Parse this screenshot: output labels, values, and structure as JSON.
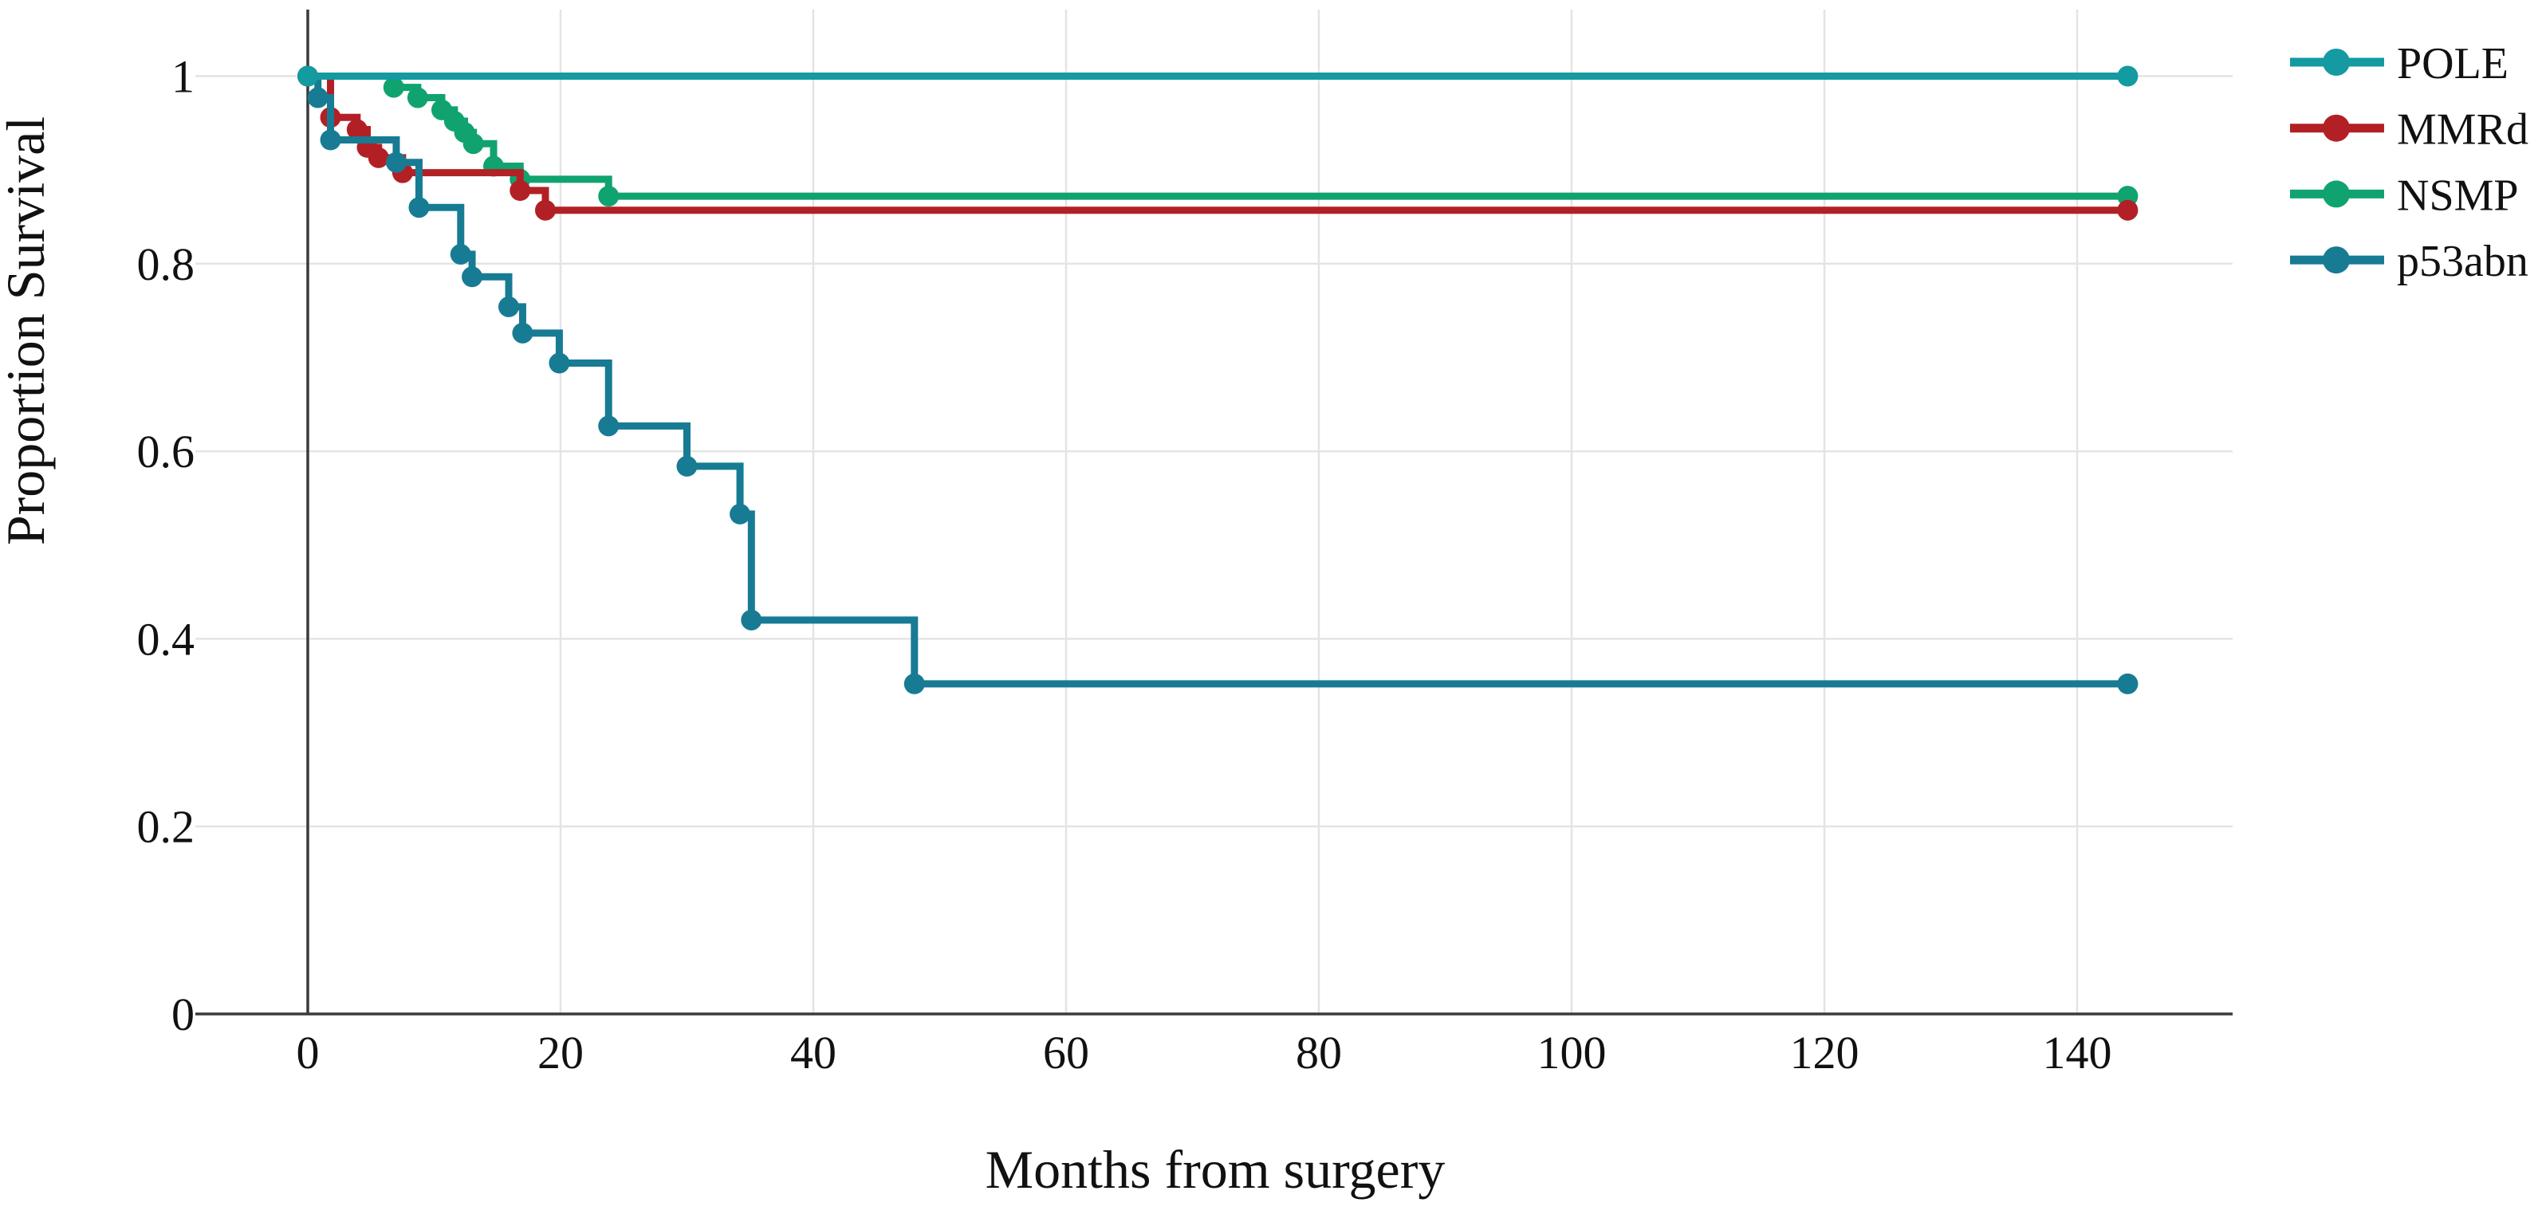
{
  "chart_data": {
    "type": "line",
    "subtype": "kaplan-meier-step",
    "title": "",
    "xlabel": "Months from surgery",
    "ylabel": "Proportion Survival",
    "xlim": [
      0,
      152
    ],
    "ylim": [
      0,
      1.05
    ],
    "grid": true,
    "legend_position": "top-right",
    "marker": "circle",
    "x_ticks": [
      {
        "value": 0,
        "label": "0"
      },
      {
        "value": 20,
        "label": "20"
      },
      {
        "value": 40,
        "label": "40"
      },
      {
        "value": 60,
        "label": "60"
      },
      {
        "value": 80,
        "label": "80"
      },
      {
        "value": 100,
        "label": "100"
      },
      {
        "value": 120,
        "label": "120"
      },
      {
        "value": 140,
        "label": "140"
      }
    ],
    "y_ticks": [
      {
        "value": 0,
        "label": "0"
      },
      {
        "value": 0.2,
        "label": "0.2"
      },
      {
        "value": 0.4,
        "label": "0.4"
      },
      {
        "value": 0.6,
        "label": "0.6"
      },
      {
        "value": 0.8,
        "label": "0.8"
      },
      {
        "value": 1,
        "label": "1"
      }
    ],
    "series": [
      {
        "name": "NSMP",
        "color": "#10a36f",
        "points": [
          [
            0,
            1.0
          ],
          [
            6.8,
            0.988
          ],
          [
            8.7,
            0.977
          ],
          [
            10.6,
            0.964
          ],
          [
            11.6,
            0.952
          ],
          [
            12.4,
            0.94
          ],
          [
            13.1,
            0.928
          ],
          [
            14.7,
            0.904
          ],
          [
            16.8,
            0.89
          ],
          [
            23.8,
            0.872
          ],
          [
            144,
            0.872
          ]
        ]
      },
      {
        "name": "MMRd",
        "color": "#b22025",
        "points": [
          [
            0,
            1.0
          ],
          [
            1.8,
            0.956
          ],
          [
            3.9,
            0.943
          ],
          [
            4.7,
            0.924
          ],
          [
            5.6,
            0.913
          ],
          [
            7.5,
            0.897
          ],
          [
            16.8,
            0.878
          ],
          [
            18.8,
            0.857
          ],
          [
            144,
            0.857
          ]
        ]
      },
      {
        "name": "p53abn",
        "color": "#177b93",
        "points": [
          [
            0,
            1.0
          ],
          [
            0.8,
            0.977
          ],
          [
            1.8,
            0.932
          ],
          [
            7.0,
            0.908
          ],
          [
            8.8,
            0.86
          ],
          [
            12.1,
            0.81
          ],
          [
            13.0,
            0.786
          ],
          [
            15.9,
            0.754
          ],
          [
            17.0,
            0.726
          ],
          [
            19.9,
            0.694
          ],
          [
            23.8,
            0.627
          ],
          [
            30.0,
            0.584
          ],
          [
            34.2,
            0.533
          ],
          [
            35.1,
            0.42
          ],
          [
            48.0,
            0.352
          ],
          [
            144,
            0.352
          ]
        ]
      },
      {
        "name": "POLE",
        "color": "#149aa1",
        "points": [
          [
            0,
            1.0
          ],
          [
            144,
            1.0
          ]
        ]
      }
    ],
    "legend_order": [
      "POLE",
      "MMRd",
      "NSMP",
      "p53abn"
    ]
  },
  "colors": {
    "axis_line": "#3a3a3a",
    "grid_line": "#e4e4e4",
    "text": "#111111",
    "background": "#ffffff"
  }
}
